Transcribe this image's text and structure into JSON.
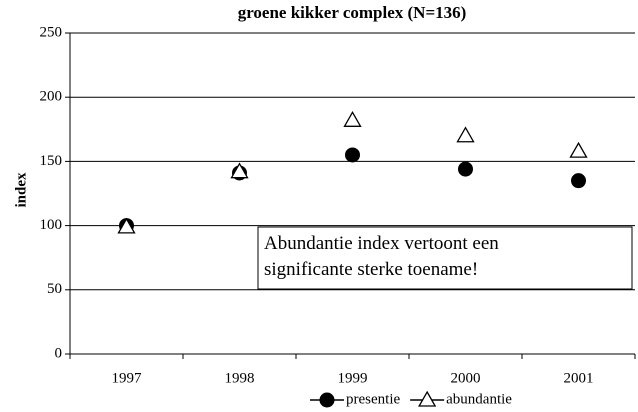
{
  "chart_data": {
    "type": "line",
    "title": "groene kikker complex (N=136)",
    "y_label": "index",
    "categories": [
      "1997",
      "1998",
      "1999",
      "2000",
      "2001"
    ],
    "series": [
      {
        "name": "presentie",
        "color": "#000000",
        "marker": "circle",
        "values": [
          100,
          141,
          155,
          144,
          135
        ]
      },
      {
        "name": "abundantie",
        "color": "#000000",
        "marker": "triangle",
        "values": [
          99,
          142,
          182,
          170,
          158
        ]
      }
    ],
    "ylim": [
      0,
      250
    ],
    "yticks": [
      0,
      50,
      100,
      150,
      200,
      250
    ],
    "grid": true,
    "legend": "bottom",
    "annotation": [
      "Abundantie index vertoont een",
      "significante sterke toename!"
    ]
  }
}
